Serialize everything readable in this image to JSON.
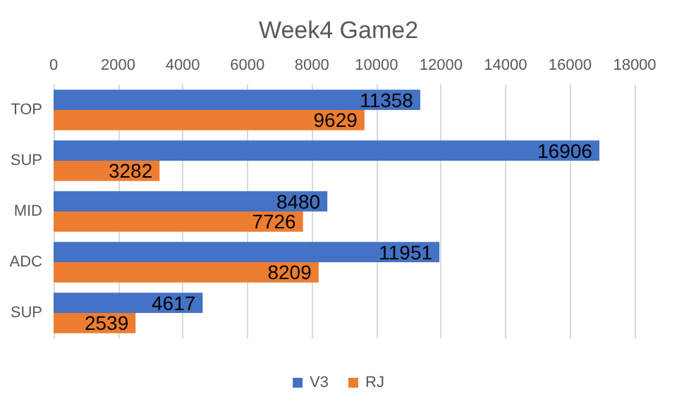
{
  "chart_data": {
    "type": "bar",
    "orientation": "horizontal",
    "title": "Week4 Game2",
    "categories": [
      "TOP",
      "SUP",
      "MID",
      "ADC",
      "SUP"
    ],
    "series": [
      {
        "name": "V3",
        "color": "#4472c4",
        "values": [
          11358,
          16906,
          8480,
          11951,
          4617
        ]
      },
      {
        "name": "RJ",
        "color": "#ed7d31",
        "values": [
          9629,
          3282,
          7726,
          8209,
          2539
        ]
      }
    ],
    "xlim": [
      0,
      18000
    ],
    "xticks": [
      0,
      2000,
      4000,
      6000,
      8000,
      10000,
      12000,
      14000,
      16000,
      18000
    ],
    "grid": "x",
    "legend": "bottom",
    "data_labels": true
  }
}
